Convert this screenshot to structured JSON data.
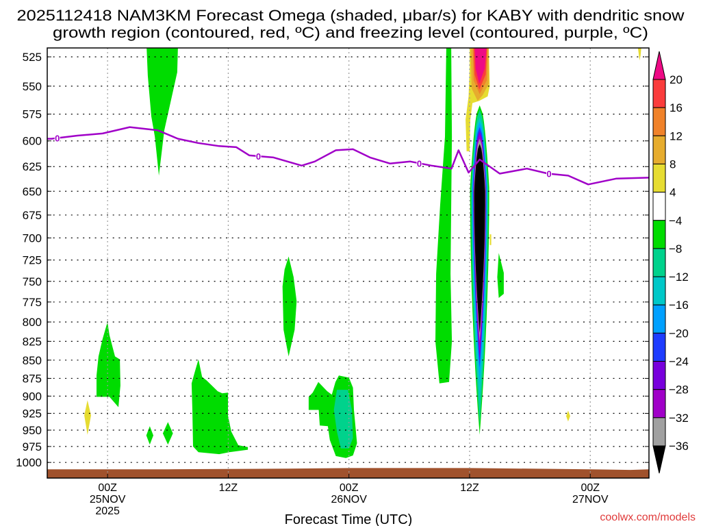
{
  "title": {
    "line1": "2025112418 NAM3KM Forecast Omega (shaded, μbar/s) for KABY with dendritic snow",
    "line2": "growth region (contoured, red, ºC) and freezing level (contoured, purple, ºC)"
  },
  "credit": "coolwx.com/models",
  "chart_data": {
    "type": "contour",
    "title": "2025112418 NAM3KM Forecast Omega (shaded, μbar/s) for KABY with dendritic snow growth region (contoured, red, ºC) and freezing level (contoured, purple, ºC)",
    "xlabel": "Forecast Time (UTC)",
    "ylabel": "",
    "xlim_hours": [
      0,
      60
    ],
    "ylim_hPa": [
      515,
      1015
    ],
    "yscale": "log-inverted",
    "grid": true,
    "yticks": [
      "525",
      "550",
      "575",
      "600",
      "625",
      "650",
      "675",
      "700",
      "725",
      "750",
      "775",
      "800",
      "825",
      "850",
      "875",
      "900",
      "925",
      "950",
      "975",
      "1000"
    ],
    "xticks": [
      {
        "hour": 6,
        "lines": [
          "00Z",
          "25NOV",
          "2025"
        ]
      },
      {
        "hour": 18,
        "lines": [
          "12Z"
        ]
      },
      {
        "hour": 30,
        "lines": [
          "00Z",
          "26NOV"
        ]
      },
      {
        "hour": 42,
        "lines": [
          "12Z"
        ]
      },
      {
        "hour": 54,
        "lines": [
          "00Z",
          "27NOV"
        ]
      }
    ],
    "colorbar": {
      "labels": [
        "20",
        "16",
        "12",
        "8",
        "4",
        "−4",
        "−8",
        "−12",
        "−16",
        "−20",
        "−24",
        "−28",
        "−32",
        "−36"
      ],
      "over_color": "#ee0a85",
      "under_color": "#000000",
      "colors": [
        "#fa3c3c",
        "#f0822a",
        "#e6ac2e",
        "#e6dc32",
        "#ffffff",
        "#00dc00",
        "#00d28c",
        "#00c8c8",
        "#00a0ff",
        "#1e3cff",
        "#7800dc",
        "#a000c8",
        "#a0a0a0"
      ]
    },
    "freezing_level": {
      "color": "#a000c8",
      "label": "0",
      "label_hours": [
        1.0,
        21.0,
        37.0,
        49.9
      ],
      "points": [
        [
          0,
          598
        ],
        [
          0.4,
          598
        ],
        [
          3,
          595
        ],
        [
          5.5,
          593
        ],
        [
          8.2,
          587
        ],
        [
          11,
          590
        ],
        [
          13,
          598
        ],
        [
          15,
          602
        ],
        [
          17.1,
          605
        ],
        [
          18.8,
          606
        ],
        [
          20.1,
          614
        ],
        [
          22.5,
          616
        ],
        [
          25.3,
          624
        ],
        [
          26.6,
          620
        ],
        [
          28.7,
          609
        ],
        [
          30.4,
          608
        ],
        [
          32.1,
          616
        ],
        [
          34.1,
          622
        ],
        [
          36.1,
          620
        ],
        [
          38.2,
          624
        ],
        [
          40.2,
          627
        ],
        [
          40.9,
          609
        ],
        [
          41.9,
          631
        ],
        [
          43,
          618
        ],
        [
          45,
          632
        ],
        [
          47.7,
          627
        ],
        [
          49.8,
          632
        ],
        [
          51.8,
          634
        ],
        [
          53.8,
          643
        ],
        [
          56.6,
          637
        ],
        [
          60,
          636
        ]
      ]
    },
    "omega_regions": [
      {
        "range": "4 to 8",
        "color": "#e6dc32",
        "points": [
          [
            3.68,
            928
          ],
          [
            4.0,
            906
          ],
          [
            4.36,
            928
          ],
          [
            4.0,
            957
          ]
        ]
      },
      {
        "range": "4 to 8",
        "color": "#e6dc32",
        "points": [
          [
            51.6,
            929
          ],
          [
            51.8,
            921
          ],
          [
            52.0,
            929
          ],
          [
            51.8,
            937
          ]
        ]
      },
      {
        "range": "4 to 8",
        "color": "#e6dc32",
        "points": [
          [
            58.7,
            515
          ],
          [
            59.1,
            515
          ],
          [
            59.0,
            524
          ],
          [
            58.9,
            528
          ]
        ]
      },
      {
        "range": "4 to 8",
        "color": "#e6dc32",
        "points": [
          [
            44.0,
            696
          ],
          [
            44.15,
            696
          ],
          [
            44.15,
            708
          ],
          [
            44.0,
            708
          ]
        ]
      },
      {
        "range": "-4 to -8",
        "color": "#00dc00",
        "points": [
          [
            9.87,
            515
          ],
          [
            13.0,
            515
          ],
          [
            12.93,
            538
          ],
          [
            11.64,
            590
          ],
          [
            11.1,
            634
          ],
          [
            10.7,
            596
          ],
          [
            10.35,
            577
          ],
          [
            10.0,
            541
          ]
        ]
      },
      {
        "range": "-4 to -8",
        "color": "#00dc00",
        "points": [
          [
            5.99,
            800
          ],
          [
            6.19,
            817
          ],
          [
            6.74,
            845
          ],
          [
            7.22,
            849
          ],
          [
            7.28,
            885
          ],
          [
            7.08,
            916
          ],
          [
            6.19,
            901
          ],
          [
            4.9,
            901
          ],
          [
            4.9,
            871
          ],
          [
            5.1,
            845
          ],
          [
            5.5,
            822
          ]
        ]
      },
      {
        "range": "-4 to -8",
        "color": "#00dc00",
        "points": [
          [
            10.2,
            944
          ],
          [
            10.55,
            958
          ],
          [
            10.2,
            972
          ],
          [
            9.85,
            958
          ]
        ]
      },
      {
        "range": "-4 to -8",
        "color": "#00dc00",
        "points": [
          [
            12.0,
            938
          ],
          [
            12.5,
            955
          ],
          [
            12.0,
            972
          ],
          [
            11.5,
            955
          ]
        ]
      },
      {
        "range": "-4 to -8",
        "color": "#00dc00",
        "points": [
          [
            15.04,
            849
          ],
          [
            15.4,
            873
          ],
          [
            15.86,
            878
          ],
          [
            16.95,
            893
          ],
          [
            17.4,
            896
          ],
          [
            17.97,
            895
          ],
          [
            17.97,
            928
          ],
          [
            18.3,
            952
          ],
          [
            19.0,
            973
          ],
          [
            19.95,
            976
          ],
          [
            19.95,
            980
          ],
          [
            18.1,
            984
          ],
          [
            17.1,
            987
          ],
          [
            15.04,
            984
          ],
          [
            14.5,
            975
          ],
          [
            14.43,
            920
          ],
          [
            14.36,
            882
          ],
          [
            14.7,
            865
          ]
        ]
      },
      {
        "range": "-4 to -8",
        "color": "#00dc00",
        "points": [
          [
            24.0,
            721
          ],
          [
            24.5,
            745
          ],
          [
            24.8,
            774
          ],
          [
            24.6,
            810
          ],
          [
            24.0,
            845
          ],
          [
            23.5,
            810
          ],
          [
            23.4,
            756
          ],
          [
            23.6,
            736
          ]
        ]
      },
      {
        "range": "-4 to -8",
        "color": "#00dc00",
        "points": [
          [
            26.96,
            880
          ],
          [
            27.84,
            893
          ],
          [
            28.3,
            898
          ],
          [
            28.66,
            880
          ],
          [
            29.0,
            871
          ],
          [
            30.0,
            874
          ],
          [
            30.4,
            888
          ],
          [
            30.5,
            920
          ],
          [
            30.8,
            970
          ],
          [
            30.4,
            989
          ],
          [
            29.7,
            993
          ],
          [
            28.7,
            990
          ],
          [
            28.1,
            965
          ],
          [
            27.9,
            944
          ],
          [
            27.1,
            943
          ],
          [
            27.0,
            920
          ],
          [
            26.0,
            920
          ],
          [
            26.0,
            901
          ],
          [
            26.4,
            895
          ]
        ]
      },
      {
        "range": "-8 to -12",
        "color": "#00d28c",
        "points": [
          [
            28.8,
            891
          ],
          [
            29.9,
            891
          ],
          [
            30.3,
            920
          ],
          [
            30.4,
            962
          ],
          [
            30.0,
            978
          ],
          [
            29.2,
            978
          ],
          [
            28.8,
            952
          ],
          [
            28.5,
            920
          ]
        ]
      },
      {
        "range": "-4 to -8",
        "color": "#00dc00",
        "points": [
          [
            39.69,
            515
          ],
          [
            40.17,
            515
          ],
          [
            40.24,
            596
          ],
          [
            40.17,
            665
          ],
          [
            40.1,
            741
          ],
          [
            40.24,
            825
          ],
          [
            39.96,
            880
          ],
          [
            39.0,
            882
          ],
          [
            38.6,
            825
          ],
          [
            38.67,
            741
          ],
          [
            39.07,
            665
          ],
          [
            39.55,
            596
          ]
        ]
      },
      {
        "range": "-4 to -8",
        "color": "#00dc00",
        "points": [
          [
            44.9,
            717
          ],
          [
            45.4,
            740
          ],
          [
            45.4,
            765
          ],
          [
            44.9,
            770
          ],
          [
            44.75,
            745
          ]
        ]
      },
      {
        "range": "4 to 8",
        "color": "#e6dc32",
        "points": [
          [
            42.0,
            515
          ],
          [
            43.9,
            515
          ],
          [
            44.0,
            550
          ],
          [
            43.8,
            559
          ],
          [
            42.96,
            563
          ],
          [
            42.28,
            565
          ],
          [
            42.07,
            580
          ],
          [
            42.0,
            610
          ],
          [
            41.7,
            610
          ],
          [
            41.6,
            580
          ],
          [
            41.9,
            559
          ],
          [
            42.0,
            535
          ]
        ]
      },
      {
        "range": "8 to 12",
        "color": "#e6ac2e",
        "points": [
          [
            42.1,
            515
          ],
          [
            43.9,
            515
          ],
          [
            43.9,
            548
          ],
          [
            43.3,
            558
          ],
          [
            42.8,
            563
          ],
          [
            42.2,
            552
          ]
        ]
      },
      {
        "range": "12 to 16",
        "color": "#f0822a",
        "points": [
          [
            42.3,
            515
          ],
          [
            43.8,
            515
          ],
          [
            43.7,
            545
          ],
          [
            43.0,
            557
          ],
          [
            42.4,
            545
          ]
        ]
      },
      {
        "range": "16 to 20",
        "color": "#fa3c3c",
        "points": [
          [
            42.4,
            515
          ],
          [
            43.75,
            515
          ],
          [
            43.6,
            540
          ],
          [
            42.96,
            553
          ],
          [
            42.5,
            540
          ]
        ]
      },
      {
        "range": ">20",
        "color": "#ee0a85",
        "points": [
          [
            42.5,
            515
          ],
          [
            43.7,
            515
          ],
          [
            43.5,
            535
          ],
          [
            42.96,
            548
          ],
          [
            42.6,
            535
          ]
        ]
      }
    ],
    "omega_core": {
      "center_hour": 43.0,
      "rings": [
        {
          "range": "-4 to -8",
          "color": "#00dc00",
          "half_width_hours": 0.95,
          "top_hPa": 567,
          "bottom_hPa": 957
        },
        {
          "range": "-8 to -12",
          "color": "#00d28c",
          "half_width_hours": 0.85,
          "top_hPa": 571,
          "bottom_hPa": 942
        },
        {
          "range": "-12 to -16",
          "color": "#00c8c8",
          "half_width_hours": 0.78,
          "top_hPa": 578,
          "bottom_hPa": 910
        },
        {
          "range": "-16 to -20",
          "color": "#00a0ff",
          "half_width_hours": 0.72,
          "top_hPa": 582,
          "bottom_hPa": 880
        },
        {
          "range": "-20 to -24",
          "color": "#1e3cff",
          "half_width_hours": 0.67,
          "top_hPa": 587,
          "bottom_hPa": 860
        },
        {
          "range": "-24 to -28",
          "color": "#7800dc",
          "half_width_hours": 0.63,
          "top_hPa": 591,
          "bottom_hPa": 850
        },
        {
          "range": "-28 to -32",
          "color": "#a000c8",
          "half_width_hours": 0.6,
          "top_hPa": 594,
          "bottom_hPa": 840
        },
        {
          "range": "-32 to -36",
          "color": "#a0a0a0",
          "half_width_hours": 0.58,
          "top_hPa": 598,
          "bottom_hPa": 825
        },
        {
          "range": "<-36",
          "color": "#000000",
          "half_width_hours": 0.55,
          "top_hPa": 603,
          "bottom_hPa": 814
        }
      ]
    },
    "surface": {
      "color": "#a0522d",
      "points": [
        [
          0,
          1011
        ],
        [
          12,
          1011
        ],
        [
          24,
          1010
        ],
        [
          30,
          1009
        ],
        [
          42,
          1009
        ],
        [
          48,
          1010
        ],
        [
          54,
          1011
        ],
        [
          58,
          1012
        ],
        [
          60,
          1011
        ]
      ]
    }
  }
}
